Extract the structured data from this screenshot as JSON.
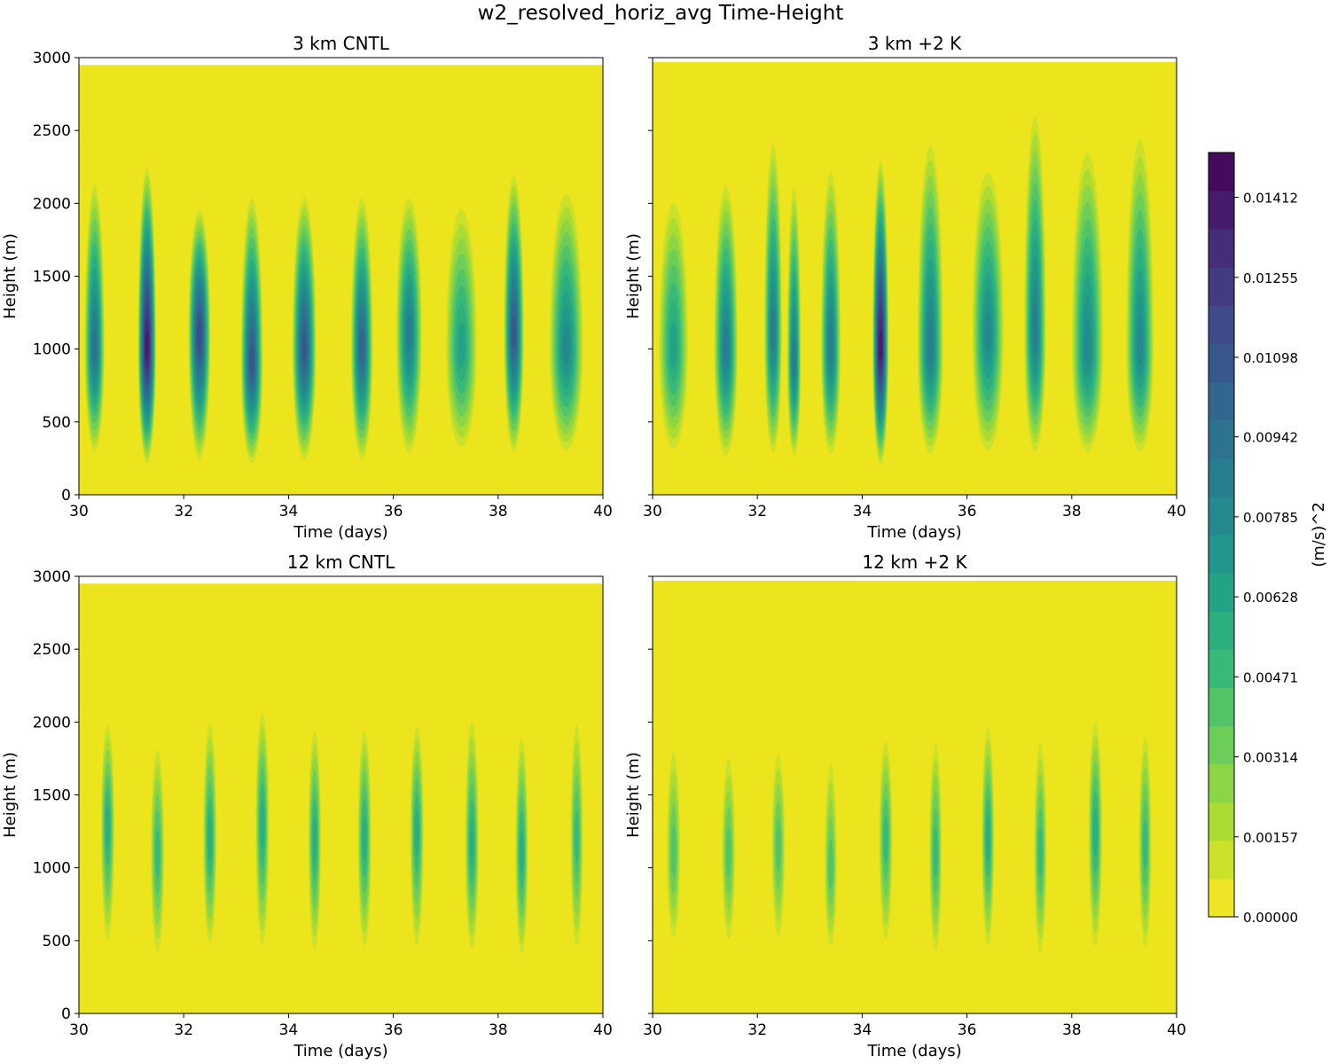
{
  "figure": {
    "suptitle": "w2_resolved_horiz_avg Time-Height"
  },
  "chart_data": [
    {
      "type": "heatmap",
      "title": "3 km CNTL",
      "xlabel": "Time (days)",
      "ylabel": "Height (m)",
      "xlim": [
        30,
        40
      ],
      "ylim": [
        0,
        3000
      ],
      "xticks": [
        "30",
        "32",
        "34",
        "36",
        "38",
        "40"
      ],
      "yticks": [
        "0",
        "500",
        "1000",
        "1500",
        "2000",
        "2500",
        "3000"
      ],
      "data_top": 2950,
      "base_color": "#ece51d",
      "plumes": [
        {
          "t": 30.3,
          "peak": 0.0095,
          "z": 1000,
          "w": 0.18,
          "bottom": 250,
          "top": 2200
        },
        {
          "t": 31.3,
          "peak": 0.0141,
          "z": 1000,
          "w": 0.16,
          "bottom": 180,
          "top": 2300
        },
        {
          "t": 32.3,
          "peak": 0.0115,
          "z": 1100,
          "w": 0.2,
          "bottom": 200,
          "top": 2000
        },
        {
          "t": 33.3,
          "peak": 0.0105,
          "z": 900,
          "w": 0.2,
          "bottom": 180,
          "top": 2100
        },
        {
          "t": 34.3,
          "peak": 0.0105,
          "z": 1000,
          "w": 0.22,
          "bottom": 200,
          "top": 2100
        },
        {
          "t": 35.4,
          "peak": 0.0098,
          "z": 1000,
          "w": 0.2,
          "bottom": 200,
          "top": 2100
        },
        {
          "t": 36.3,
          "peak": 0.0085,
          "z": 1100,
          "w": 0.24,
          "bottom": 230,
          "top": 2100
        },
        {
          "t": 37.3,
          "peak": 0.006,
          "z": 1000,
          "w": 0.3,
          "bottom": 260,
          "top": 2050
        },
        {
          "t": 38.3,
          "peak": 0.0105,
          "z": 1100,
          "w": 0.18,
          "bottom": 250,
          "top": 2250
        },
        {
          "t": 39.3,
          "peak": 0.0075,
          "z": 1000,
          "w": 0.32,
          "bottom": 250,
          "top": 2150
        }
      ]
    },
    {
      "type": "heatmap",
      "title": "3 km +2 K",
      "xlabel": "Time (days)",
      "ylabel": "Height (m)",
      "xlim": [
        30,
        40
      ],
      "ylim": [
        0,
        3000
      ],
      "xticks": [
        "30",
        "32",
        "34",
        "36",
        "38",
        "40"
      ],
      "yticks": [],
      "data_top": 2970,
      "base_color": "#ece51d",
      "plumes": [
        {
          "t": 30.4,
          "peak": 0.0065,
          "z": 1000,
          "w": 0.28,
          "bottom": 250,
          "top": 2100
        },
        {
          "t": 31.4,
          "peak": 0.009,
          "z": 1000,
          "w": 0.22,
          "bottom": 220,
          "top": 2200
        },
        {
          "t": 32.3,
          "peak": 0.0085,
          "z": 1100,
          "w": 0.16,
          "bottom": 230,
          "top": 2500
        },
        {
          "t": 32.7,
          "peak": 0.009,
          "z": 900,
          "w": 0.12,
          "bottom": 220,
          "top": 2200
        },
        {
          "t": 33.4,
          "peak": 0.0085,
          "z": 1000,
          "w": 0.18,
          "bottom": 230,
          "top": 2300
        },
        {
          "t": 34.35,
          "peak": 0.0141,
          "z": 1000,
          "w": 0.14,
          "bottom": 170,
          "top": 2350
        },
        {
          "t": 35.3,
          "peak": 0.0085,
          "z": 1000,
          "w": 0.24,
          "bottom": 230,
          "top": 2500
        },
        {
          "t": 36.4,
          "peak": 0.0075,
          "z": 1100,
          "w": 0.3,
          "bottom": 240,
          "top": 2300
        },
        {
          "t": 37.3,
          "peak": 0.009,
          "z": 1100,
          "w": 0.2,
          "bottom": 240,
          "top": 2700
        },
        {
          "t": 38.3,
          "peak": 0.0075,
          "z": 1000,
          "w": 0.3,
          "bottom": 240,
          "top": 2450
        },
        {
          "t": 39.3,
          "peak": 0.0075,
          "z": 1000,
          "w": 0.26,
          "bottom": 240,
          "top": 2550
        }
      ]
    },
    {
      "type": "heatmap",
      "title": "12 km CNTL",
      "xlabel": "Time (days)",
      "ylabel": "Height (m)",
      "xlim": [
        30,
        40
      ],
      "ylim": [
        0,
        3000
      ],
      "xticks": [
        "30",
        "32",
        "34",
        "36",
        "38",
        "40"
      ],
      "yticks": [
        "0",
        "500",
        "1000",
        "1500",
        "2000",
        "2500",
        "3000"
      ],
      "data_top": 2950,
      "base_color": "#ece51d",
      "plumes": [
        {
          "t": 30.55,
          "peak": 0.0055,
          "z": 1300,
          "w": 0.12,
          "bottom": 420,
          "top": 2050
        },
        {
          "t": 31.5,
          "peak": 0.005,
          "z": 1100,
          "w": 0.12,
          "bottom": 330,
          "top": 1900
        },
        {
          "t": 32.5,
          "peak": 0.0055,
          "z": 1200,
          "w": 0.12,
          "bottom": 400,
          "top": 2080
        },
        {
          "t": 33.5,
          "peak": 0.0058,
          "z": 1300,
          "w": 0.12,
          "bottom": 380,
          "top": 2150
        },
        {
          "t": 34.5,
          "peak": 0.0058,
          "z": 1200,
          "w": 0.11,
          "bottom": 350,
          "top": 2020
        },
        {
          "t": 35.45,
          "peak": 0.0055,
          "z": 1200,
          "w": 0.12,
          "bottom": 380,
          "top": 2020
        },
        {
          "t": 36.45,
          "peak": 0.0055,
          "z": 1250,
          "w": 0.12,
          "bottom": 380,
          "top": 2050
        },
        {
          "t": 37.5,
          "peak": 0.0055,
          "z": 1150,
          "w": 0.12,
          "bottom": 370,
          "top": 2100
        },
        {
          "t": 38.45,
          "peak": 0.0058,
          "z": 1100,
          "w": 0.11,
          "bottom": 330,
          "top": 1980
        },
        {
          "t": 39.5,
          "peak": 0.0052,
          "z": 1200,
          "w": 0.11,
          "bottom": 370,
          "top": 2080
        }
      ]
    },
    {
      "type": "heatmap",
      "title": "12 km +2 K",
      "xlabel": "Time (days)",
      "ylabel": "Height (m)",
      "xlim": [
        30,
        40
      ],
      "ylim": [
        0,
        3000
      ],
      "xticks": [
        "30",
        "32",
        "34",
        "36",
        "38",
        "40"
      ],
      "yticks": [],
      "data_top": 2970,
      "base_color": "#ece51d",
      "plumes": [
        {
          "t": 30.4,
          "peak": 0.004,
          "z": 1100,
          "w": 0.12,
          "bottom": 430,
          "top": 1900
        },
        {
          "t": 31.45,
          "peak": 0.0042,
          "z": 1100,
          "w": 0.12,
          "bottom": 420,
          "top": 1850
        },
        {
          "t": 32.4,
          "peak": 0.0042,
          "z": 1150,
          "w": 0.12,
          "bottom": 430,
          "top": 1880
        },
        {
          "t": 33.4,
          "peak": 0.0042,
          "z": 1000,
          "w": 0.11,
          "bottom": 380,
          "top": 1820
        },
        {
          "t": 34.45,
          "peak": 0.0048,
          "z": 1200,
          "w": 0.12,
          "bottom": 420,
          "top": 1950
        },
        {
          "t": 35.4,
          "peak": 0.0048,
          "z": 1100,
          "w": 0.11,
          "bottom": 340,
          "top": 1950
        },
        {
          "t": 36.4,
          "peak": 0.0055,
          "z": 1200,
          "w": 0.11,
          "bottom": 380,
          "top": 2050
        },
        {
          "t": 37.4,
          "peak": 0.0048,
          "z": 1100,
          "w": 0.11,
          "bottom": 330,
          "top": 1950
        },
        {
          "t": 38.45,
          "peak": 0.0055,
          "z": 1250,
          "w": 0.12,
          "bottom": 380,
          "top": 2080
        },
        {
          "t": 39.4,
          "peak": 0.005,
          "z": 1150,
          "w": 0.11,
          "bottom": 370,
          "top": 2000
        }
      ]
    }
  ],
  "colorbar": {
    "label": "(m/s)^2",
    "min": 0.0,
    "max": 0.015,
    "levels": 20,
    "tick_values": [
      0.0,
      0.00157,
      0.00314,
      0.00471,
      0.00628,
      0.00785,
      0.00942,
      0.01098,
      0.01255,
      0.01412
    ],
    "tick_labels": [
      "0.00000",
      "0.00157",
      "0.00314",
      "0.00471",
      "0.00628",
      "0.00785",
      "0.00942",
      "0.01098",
      "0.01255",
      "0.01412"
    ],
    "colormap": "viridis_r"
  }
}
